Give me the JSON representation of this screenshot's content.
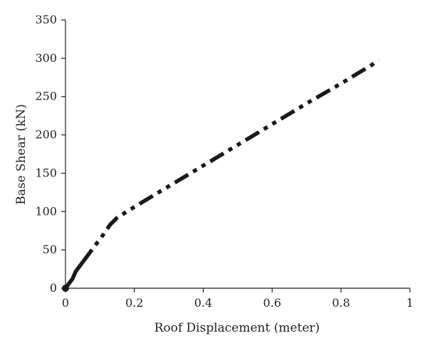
{
  "chart_data": {
    "type": "line",
    "xlabel": "Roof Displacement (meter)",
    "ylabel": "Base Shear (kN)",
    "xlim": [
      0,
      1
    ],
    "ylim": [
      0,
      350
    ],
    "xticks": [
      0,
      0.2,
      0.4,
      0.6,
      0.8,
      1
    ],
    "xtick_labels": [
      "0",
      "0.2",
      "0.4",
      "0.6",
      "0.8",
      "1"
    ],
    "yticks": [
      0,
      50,
      100,
      150,
      200,
      250,
      300,
      350
    ],
    "ytick_labels": [
      "0",
      "50",
      "100",
      "150",
      "200",
      "250",
      "300",
      "350"
    ],
    "grid": false,
    "series": [
      {
        "line_style": "dash-dot-dot",
        "color": "#1a1a1a",
        "marker_at_origin": true,
        "x": [
          0,
          0.01,
          0.02,
          0.03,
          0.05,
          0.08,
          0.11,
          0.13,
          0.15,
          0.2,
          0.3,
          0.4,
          0.5,
          0.6,
          0.7,
          0.8,
          0.91
        ],
        "y": [
          0,
          6,
          12,
          22,
          34,
          52,
          70,
          83,
          92,
          106,
          133,
          160,
          187,
          214,
          241,
          267,
          297
        ]
      }
    ]
  }
}
